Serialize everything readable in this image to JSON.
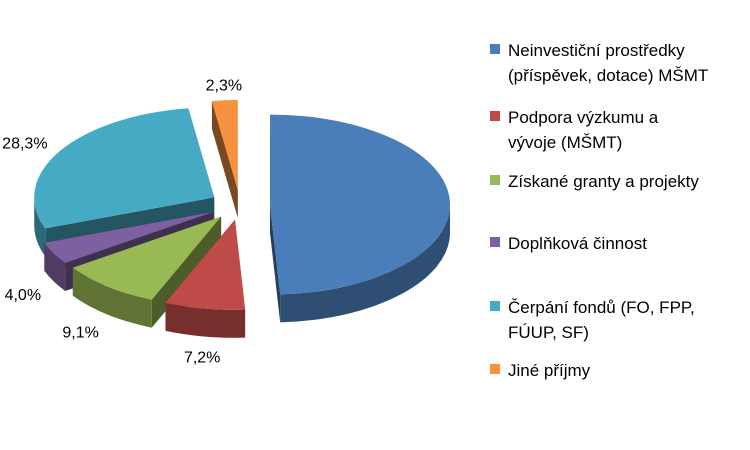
{
  "chart_data": {
    "type": "pie",
    "title": "",
    "legend_position": "right",
    "slices": [
      {
        "label": "Neinvestiční prostředky\n(příspěvek, dotace) MŠMT",
        "value": 49.1,
        "display": "49,1%",
        "color": "#4A7EBB"
      },
      {
        "label": "Podpora výzkumu a\nvývoje (MŠMT)",
        "value": 7.2,
        "display": "7,2%",
        "color": "#BE4B48"
      },
      {
        "label": "Získané granty a projekty",
        "value": 9.1,
        "display": "9,1%",
        "color": "#98B954"
      },
      {
        "label": "Doplňková činnost",
        "value": 4.0,
        "display": "4,0%",
        "color": "#7D60A0"
      },
      {
        "label": "Čerpání fondů (FO, FPP,\nFÚUP, SF)",
        "value": 28.3,
        "display": "28,3%",
        "color": "#46AAC5"
      },
      {
        "label": "Jiné příjmy",
        "value": 2.3,
        "display": "2,3%",
        "color": "#F69240"
      }
    ]
  }
}
